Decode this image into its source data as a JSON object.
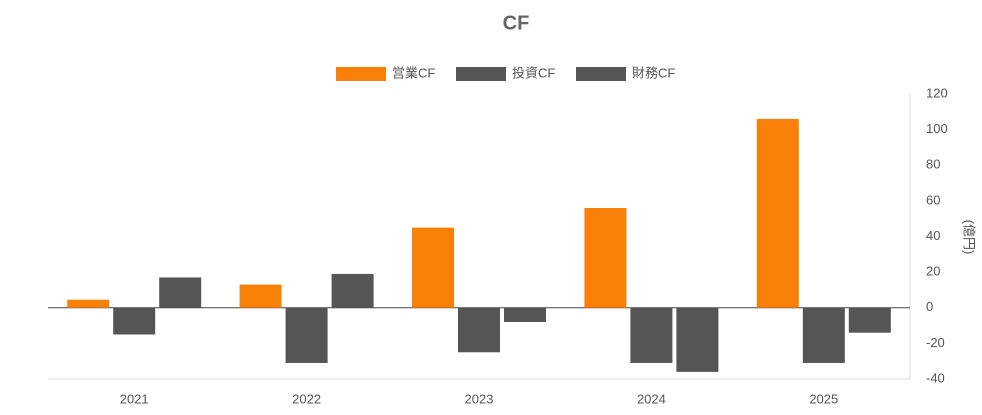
{
  "chart_data": {
    "type": "bar",
    "title": "CF",
    "y_label": "(億円)",
    "categories": [
      "2021",
      "2022",
      "2023",
      "2024",
      "2025"
    ],
    "series": [
      {
        "name": "営業CF",
        "color": "#f98008",
        "values": [
          4.5,
          13,
          45,
          56,
          106
        ]
      },
      {
        "name": "投資CF",
        "color": "#555555",
        "values": [
          -15,
          -31,
          -25,
          -31,
          -31
        ]
      },
      {
        "name": "財務CF",
        "color": "#555555",
        "values": [
          17,
          19,
          -8,
          -36,
          -14
        ]
      }
    ],
    "ylim": [
      -40,
      120
    ],
    "yticks": [
      -40,
      -20,
      0,
      20,
      40,
      60,
      80,
      100,
      120
    ],
    "legend": "top",
    "grid": false
  }
}
